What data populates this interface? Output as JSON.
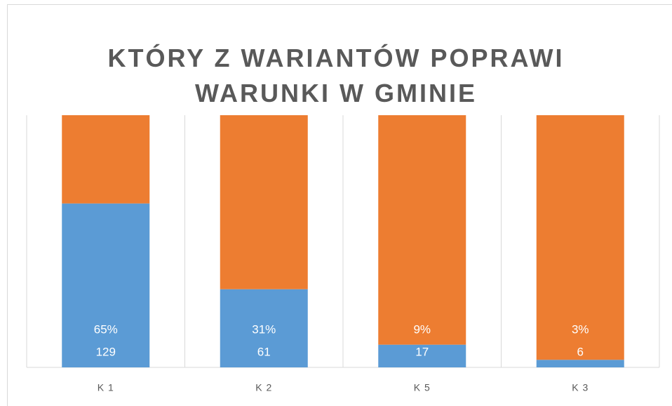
{
  "chart_data": {
    "type": "stacked_bar_100",
    "title": "KTÓRY Z WARIANTÓW POPRAWI WARUNKI W GMINIE",
    "categories": [
      "K 1",
      "K 2",
      "K 5",
      "K 3"
    ],
    "ylim": [
      0,
      100
    ],
    "series": [
      {
        "color": "#5b9bd5",
        "values": [
          65,
          31,
          9,
          3
        ],
        "value_labels": [
          "65%",
          "31%",
          "9%",
          "3%"
        ],
        "counts": [
          129,
          61,
          17,
          6
        ]
      },
      {
        "color": "#ed7d31",
        "values": [
          35,
          69,
          91,
          97
        ]
      }
    ]
  }
}
